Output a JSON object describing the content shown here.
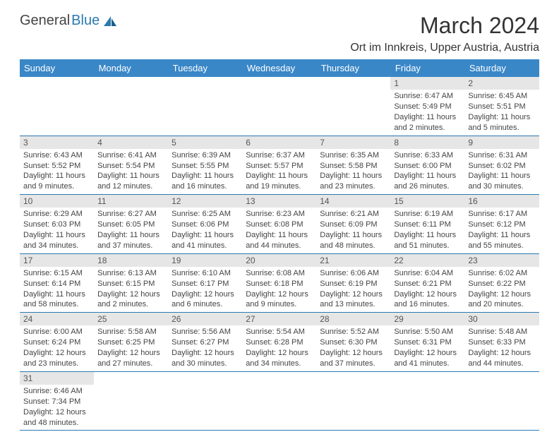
{
  "brand": {
    "part1": "General",
    "part2": "Blue"
  },
  "title": "March 2024",
  "location": "Ort im Innkreis, Upper Austria, Austria",
  "colors": {
    "header_bg": "#3a87c8",
    "header_text": "#ffffff",
    "daynum_bg": "#e6e6e6",
    "row_border": "#2a7ab0",
    "brand_accent": "#2a7ab0",
    "body_text": "#444444"
  },
  "day_headers": [
    "Sunday",
    "Monday",
    "Tuesday",
    "Wednesday",
    "Thursday",
    "Friday",
    "Saturday"
  ],
  "weeks": [
    [
      null,
      null,
      null,
      null,
      null,
      {
        "n": "1",
        "sr": "Sunrise: 6:47 AM",
        "ss": "Sunset: 5:49 PM",
        "d1": "Daylight: 11 hours",
        "d2": "and 2 minutes."
      },
      {
        "n": "2",
        "sr": "Sunrise: 6:45 AM",
        "ss": "Sunset: 5:51 PM",
        "d1": "Daylight: 11 hours",
        "d2": "and 5 minutes."
      }
    ],
    [
      {
        "n": "3",
        "sr": "Sunrise: 6:43 AM",
        "ss": "Sunset: 5:52 PM",
        "d1": "Daylight: 11 hours",
        "d2": "and 9 minutes."
      },
      {
        "n": "4",
        "sr": "Sunrise: 6:41 AM",
        "ss": "Sunset: 5:54 PM",
        "d1": "Daylight: 11 hours",
        "d2": "and 12 minutes."
      },
      {
        "n": "5",
        "sr": "Sunrise: 6:39 AM",
        "ss": "Sunset: 5:55 PM",
        "d1": "Daylight: 11 hours",
        "d2": "and 16 minutes."
      },
      {
        "n": "6",
        "sr": "Sunrise: 6:37 AM",
        "ss": "Sunset: 5:57 PM",
        "d1": "Daylight: 11 hours",
        "d2": "and 19 minutes."
      },
      {
        "n": "7",
        "sr": "Sunrise: 6:35 AM",
        "ss": "Sunset: 5:58 PM",
        "d1": "Daylight: 11 hours",
        "d2": "and 23 minutes."
      },
      {
        "n": "8",
        "sr": "Sunrise: 6:33 AM",
        "ss": "Sunset: 6:00 PM",
        "d1": "Daylight: 11 hours",
        "d2": "and 26 minutes."
      },
      {
        "n": "9",
        "sr": "Sunrise: 6:31 AM",
        "ss": "Sunset: 6:02 PM",
        "d1": "Daylight: 11 hours",
        "d2": "and 30 minutes."
      }
    ],
    [
      {
        "n": "10",
        "sr": "Sunrise: 6:29 AM",
        "ss": "Sunset: 6:03 PM",
        "d1": "Daylight: 11 hours",
        "d2": "and 34 minutes."
      },
      {
        "n": "11",
        "sr": "Sunrise: 6:27 AM",
        "ss": "Sunset: 6:05 PM",
        "d1": "Daylight: 11 hours",
        "d2": "and 37 minutes."
      },
      {
        "n": "12",
        "sr": "Sunrise: 6:25 AM",
        "ss": "Sunset: 6:06 PM",
        "d1": "Daylight: 11 hours",
        "d2": "and 41 minutes."
      },
      {
        "n": "13",
        "sr": "Sunrise: 6:23 AM",
        "ss": "Sunset: 6:08 PM",
        "d1": "Daylight: 11 hours",
        "d2": "and 44 minutes."
      },
      {
        "n": "14",
        "sr": "Sunrise: 6:21 AM",
        "ss": "Sunset: 6:09 PM",
        "d1": "Daylight: 11 hours",
        "d2": "and 48 minutes."
      },
      {
        "n": "15",
        "sr": "Sunrise: 6:19 AM",
        "ss": "Sunset: 6:11 PM",
        "d1": "Daylight: 11 hours",
        "d2": "and 51 minutes."
      },
      {
        "n": "16",
        "sr": "Sunrise: 6:17 AM",
        "ss": "Sunset: 6:12 PM",
        "d1": "Daylight: 11 hours",
        "d2": "and 55 minutes."
      }
    ],
    [
      {
        "n": "17",
        "sr": "Sunrise: 6:15 AM",
        "ss": "Sunset: 6:14 PM",
        "d1": "Daylight: 11 hours",
        "d2": "and 58 minutes."
      },
      {
        "n": "18",
        "sr": "Sunrise: 6:13 AM",
        "ss": "Sunset: 6:15 PM",
        "d1": "Daylight: 12 hours",
        "d2": "and 2 minutes."
      },
      {
        "n": "19",
        "sr": "Sunrise: 6:10 AM",
        "ss": "Sunset: 6:17 PM",
        "d1": "Daylight: 12 hours",
        "d2": "and 6 minutes."
      },
      {
        "n": "20",
        "sr": "Sunrise: 6:08 AM",
        "ss": "Sunset: 6:18 PM",
        "d1": "Daylight: 12 hours",
        "d2": "and 9 minutes."
      },
      {
        "n": "21",
        "sr": "Sunrise: 6:06 AM",
        "ss": "Sunset: 6:19 PM",
        "d1": "Daylight: 12 hours",
        "d2": "and 13 minutes."
      },
      {
        "n": "22",
        "sr": "Sunrise: 6:04 AM",
        "ss": "Sunset: 6:21 PM",
        "d1": "Daylight: 12 hours",
        "d2": "and 16 minutes."
      },
      {
        "n": "23",
        "sr": "Sunrise: 6:02 AM",
        "ss": "Sunset: 6:22 PM",
        "d1": "Daylight: 12 hours",
        "d2": "and 20 minutes."
      }
    ],
    [
      {
        "n": "24",
        "sr": "Sunrise: 6:00 AM",
        "ss": "Sunset: 6:24 PM",
        "d1": "Daylight: 12 hours",
        "d2": "and 23 minutes."
      },
      {
        "n": "25",
        "sr": "Sunrise: 5:58 AM",
        "ss": "Sunset: 6:25 PM",
        "d1": "Daylight: 12 hours",
        "d2": "and 27 minutes."
      },
      {
        "n": "26",
        "sr": "Sunrise: 5:56 AM",
        "ss": "Sunset: 6:27 PM",
        "d1": "Daylight: 12 hours",
        "d2": "and 30 minutes."
      },
      {
        "n": "27",
        "sr": "Sunrise: 5:54 AM",
        "ss": "Sunset: 6:28 PM",
        "d1": "Daylight: 12 hours",
        "d2": "and 34 minutes."
      },
      {
        "n": "28",
        "sr": "Sunrise: 5:52 AM",
        "ss": "Sunset: 6:30 PM",
        "d1": "Daylight: 12 hours",
        "d2": "and 37 minutes."
      },
      {
        "n": "29",
        "sr": "Sunrise: 5:50 AM",
        "ss": "Sunset: 6:31 PM",
        "d1": "Daylight: 12 hours",
        "d2": "and 41 minutes."
      },
      {
        "n": "30",
        "sr": "Sunrise: 5:48 AM",
        "ss": "Sunset: 6:33 PM",
        "d1": "Daylight: 12 hours",
        "d2": "and 44 minutes."
      }
    ],
    [
      {
        "n": "31",
        "sr": "Sunrise: 6:46 AM",
        "ss": "Sunset: 7:34 PM",
        "d1": "Daylight: 12 hours",
        "d2": "and 48 minutes."
      },
      null,
      null,
      null,
      null,
      null,
      null
    ]
  ]
}
